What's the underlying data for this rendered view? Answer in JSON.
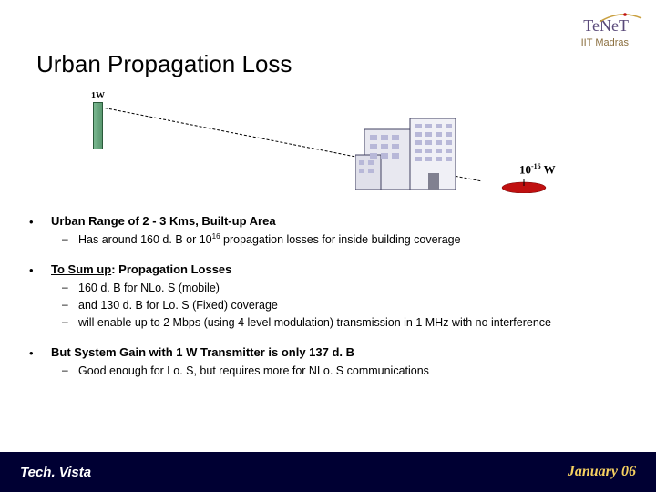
{
  "header": {
    "logo_text": "TeNeT",
    "subtitle": "IIT Madras"
  },
  "title": "Urban Propagation Loss",
  "diagram": {
    "tx_label": "1W",
    "rx_label_prefix": "10",
    "rx_label_exp": "-16",
    "rx_label_suffix": " W",
    "antenna_color": "#7ab890",
    "building_fill": "#e8e8f0",
    "building_stroke": "#404060",
    "receiver_color": "#c01010"
  },
  "bullets": [
    {
      "text": "Urban Range of 2 - 3 Kms, Built-up Area",
      "subs": [
        {
          "html": "Has around 160 d. B or 10<sup>16</sup> propagation losses for inside building coverage"
        }
      ]
    },
    {
      "text_html": "<span class='underline'>To Sum up</span>: Propagation Losses",
      "subs": [
        {
          "html": " 160 d. B for NLo. S (mobile)"
        },
        {
          "html": "and 130 d. B for Lo. S (Fixed) coverage"
        },
        {
          "html": "will enable up to 2 Mbps (using 4 level modulation) transmission in 1 MHz with no interference"
        }
      ]
    },
    {
      "text": "But System Gain with 1 W Transmitter is only 137 d. B",
      "subs": [
        {
          "html": "Good enough for Lo. S, but requires more for NLo. S communications"
        }
      ]
    }
  ],
  "footer": {
    "left": "Tech. Vista",
    "right": "January 06"
  },
  "colors": {
    "footer_bg": "#000033",
    "footer_right": "#f5d060"
  }
}
